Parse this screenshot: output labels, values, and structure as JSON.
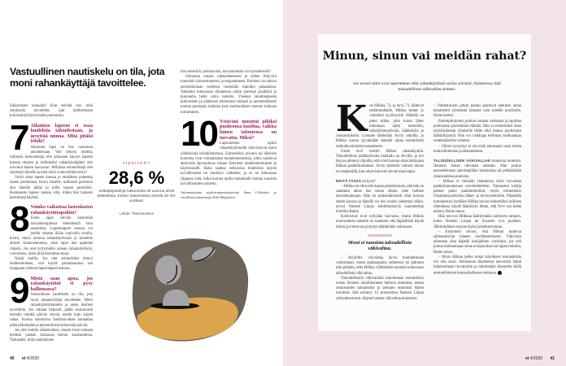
{
  "left_page": {
    "headline": "Vastuullinen nautiskelu on tila, jota moni rahankäyttäjä tavoittelee.",
    "intro": "liikkumisen kannalta? Kun selvität itse, mitä ostoksella tavoittelet, opit hallitsemaan kulutuskäyttäytymistäsi paremmin.",
    "q7": {
      "number": "7",
      "question": "Aikuinen lapseni ei osaa huolehtia taloudestaan, ja ärsyttää minua. Mitä pitäisi tehdä?",
      "paragraphs": [
        "Aikuinen lapsi on itse vastuussa taloudestaan. Voit tietysti miettiä, millaisia keskusteluja olet aikanaan käynyt lapsesi kanssa rahasta ja millaiseksi rahankäyttäjäksi olet toivonut hänen kasvavan. Millaisia esimerkkejä olet näyttänyt hänelle ja mitä olisit voinut tehdä toisin?",
        "Voisit ottaa lapsen kanssa jo etukäteen puheeksi hänen perintönsä. Kerro hänelle, millaisen perinnön aiot hänelle jättää ja mille lapsen perintöön. Keskustele lapsesi kanssa siitä, miten hän haluaisi perintönsä käyttää."
      ]
    },
    "q8": {
      "number": "8",
      "question": "Voinko vaikuttaa lastenlasten rahankäyttötapoihin?",
      "paragraphs": [
        "Usein lapsi selviää enemmän isovanhempiensa tekemisistä kuin sanomista. Lapsenlapsen kanssa voi jutella rahasta ikään sopivalla tavalla. Kerro, mistä omassa rahankäytössäsi ja kuuntele aidosti kiinnostuneena, mitä lapsi itse ajattelee rahasta. Jos olet tyytymätön omaan rahankäyttöösi, voit kertoa, mikä siinä harmittaa sinua.",
        "Näytä mallia. Jos olet esimerkiksi tehnyt heräteostoksen, voit käydä palauttamassa sen kauppaan yhdessä lapsenlapsen kanssa."
      ]
    },
    "q9": {
      "number": "9",
      "question": "Mistä saan apua, jos rahankäyttöni ei pysy hallinnassa?",
      "paragraphs": [
        "Vastuullinen nautiskelu on tila, jota moni rahankäyttäjä tavoittelee. Mieti rahankäyttötilanteita ja aseta itsellesi tavoitteita. Jos tuhlaat helposti, päätä seuraavalla kerralla miettiä päivän verran, ennen kuin käytät rahaa. Isoissa ostoksissa harkinta-aikaa kannattaa pitää pidempään ja pienemmissä seitsemän päivää.",
        "Jos olet todella säästäväinen, haasta itsesi tamaan itsellesi jotakin mukavaa kerran kuukaudessa. Tarkastele, mitä uudenlainen"
      ]
    },
    "fact": {
      "label": "TIESITKÖ?",
      "value": "28,6 %",
      "text": "velkajärjestelyä hakeneista oli vuonna 2019 eläkeläisiä. Eniten hakemuksia tekivät 45–54-vuotiaat.",
      "source": "Lähde: Tilastokeskus"
    },
    "col3": {
      "paragraphs": [
        "tiin tunteisiin: pelottavalta, turvattomalta vai myönteiseltä?",
        "Suhtaudu omaan rahasuhteeseesi ja siihen liittyviin tunteisiin kiinnostuneesti ja empaattisesti. Ihminen on taitava perustelemaan itselleen vanhoihin tapoihin palaamista. Vaikealta tuntuvassa tilanteessa onkin parempi pysähtyä ja kuunnella hetki omia tunteita. Yleensä rahatilanteesta puhuminen ja päätösten tekeminen hitaasti ja perusteellisesti tuottaa parempia tuloksia kuin ensimmäisen tunteen mukaan toimiminen."
      ],
      "q10": {
        "number": "10",
        "question": "Ystäväni muuttui pihiksi puolisonsa kuoltua, vaikka hänen taloutensa on turvattu. Miksi?",
        "paragraph": "Lapsuudessa opitut rahankäyttömallit aktivoituvat usein yllättävissä kriisitilanteissa. Esimerkiksi avioero tai läheisen kuolema ovat voimakkaita tunnekokemuksia, jotka saattavat aktivoida lapsuudessa rahaan liittyneet tunnekokemukset ja käytösmallit. Raha saattaa sellaisissa tilanteissa tarjota turvallisuutta tai merkitys vaihtelee, ja se on kokonaan riippuen siitä, mikä kotona opittu tunnemalli tuottaa suurinta turvallisuuden tunnetta."
      },
      "credit": "Asiantuntijoina psykoterapeuttiopettaja Anna Collander ja varallisuusvalmentaja Terhi Majasalmi."
    },
    "page_number": "40",
    "magazine": "et",
    "issue": "4/2020"
  },
  "right_page": {
    "title": "Minun, sinun vai meidän rahat?",
    "subtitle": "Jos toisen tulot ovat suuremmat eikä rahankäytöstä sovita selvästi, tilanteessa itää taloudellisen väkivallan siemen.",
    "drop_cap": "K",
    "colA": [
      "un Hilkka, 72, ja Arvi, 71, lähtevät etelänmatkalle, Hilkka tuntee jo valmiiksi syyllisyyttä. Hänellä on pieni eläke, joka kuluu lähes kokonaan arjen menoihin, lainanlyhennyksiin, lääkkeisiin ja ruokaostoksiin. Lomalle lähdetään Arvin rahoilla, ja Hilkka joutuu pyytämään häneltä rahaa esimerkiksi matkalla tuliaisten ostamiseen.",
      "Usein Arvi moittii Hilkan rahankäyttöä. Taloudellinen päätäntävalta matkalla on Arvilla, ja nyt hän on alkanut vihjailla, että voisi kotona ottaa haltuunsa Hilkan pankkitunnukset. Arvin mielestä vaimon talous on retuperällä, kun rahat tuntuvat olevan aina loppu."
    ],
    "colA_sub_lead": "MISTÄ TÄSSÄ",
    "colA_sub_rest": " on kyse?",
    "colA_b": [
      "– Hilkka on ollut niin kauan pienituloinen, että hän on saattanut alkaa itse uskoa siihen, ettei hallitse taloudenpitoaan. Hän on todennäköisesti ollut kotona lasten kanssa ja hänellä on sen vuoksi pienempi eläke, arvioi Naisten Linjan kehittämistyön suunnittelija Katriina Raine.",
      "Kotirouvat ovat nykyään harvassa, mutta Hilkan nuoruudessa naiselle on saattanut olla häpeällistä käydä töissä, jos mies on pystynyt elättämään vaimoaan.",
      "– Avioliitto velvoittaa Arvia huolehtimaan vaimostaan, mutta epätasapaino suhteessa on jatkunut niin pitkään, ettei Hilkka välttämättä tunnista kokevansa taloudellista väkivaltaa.",
      "Taloudellisella väkivallalla tarkoitetaan esimerkiksi toisen ihmisen rahaliikenteen haltuun ottamista, toisen omaisuuden tuhoamista ja lainojen ottamista hänen nimiinsä. Sitä esiintyy 12 prosentissa Naisten Linjan yhteydenotoista. Järjestö auttaa väkivaltaa kokeneita."
    ],
    "colB": [
      "– Valitettavasti jotkin pankit saattavat edelleen antaa lainatiedot yhteisestä lainasta vain toiselle puolisolle, Raine kertoo.",
      "Parempituloinen puoliso saattaa vaikuttaa ja rajoittaa puolisonsa päivittäistä elämää. Hän ei esimerkiksi anna käyttöoikeutta yhteiselle tilille eikä maksa puolisonsa lääkärikäyntiä. Hän voi vaikkapa kellottaa suihkuaikaa vedensäästöön vedoten.",
      "– Silloin kysymys ei ole enää talousasia vaan toisen kontrolloinnista ja alistamisesta."
    ],
    "colB_sub_lead": "TALOUDELLISEN VÄKIVALLAN",
    "colB_sub_rest": " tunnistaa tunteista. Ihminen kokee olevansa alistettu. Hän joutuu perustelemaan pienimpiäkin hankintoja tai pelkäämään omaisuutensa puolesta.",
    "colB_b": [
      "– Hilkan ei missään tilanteessa tulisi luovuttaa pankkitunnuksiaan aviomiehelleen. Tunnusten haltija pääsee paitsi pankkitietoihin, myös esimerkiksi Omakanta-palvelun lääke- ja terveystietoihin. Pitämällä tunnuksensa itsellään Hilkka turvaa esimerkiksi laillisen oikeutensa käydä lääkärissä ilman, että Arvi saa tietää asiasta, Raine sanoo.",
      "Hän neuvoo Hilkkaa kääntymään auttavien tahojen, kuten Naisten Linjan tai Suvanto ry:n puoleen. Jälkimmäinen tarjoaa myös juristineuvontaa.",
      "– Erityisesti toivon, että Hilkan tuntevat suhtautuisivat häneen myötätuntoisesti. Väkivalta aiheuttaa aina häpeää kokijalleen varsinkin, jos sitä joutuu kohtaamaan oman aviopuolison tai lapsen taholta, Raine sanoo.",
      "– Myös Hilkan pelko oman käytöksen seurauksista voi olla suuri. Sellaisessa tilanteessa neuvoisin häntä hakeutumaan turvakotiin ja miettimään tilannetta siellä ammattilaisten kanssa/kalkessa rauhassa."
    ],
    "pull_quote": "Moni ei tunnista taloudellista väkivaltaa.",
    "page_number": "41",
    "magazine": "et",
    "issue": "4/2020"
  },
  "colors": {
    "accent": "#a0285a",
    "page_bg": "#f2e4ea",
    "illustration_dark": "#6b6357",
    "illustration_gold": "#dca54d",
    "coin": "#a6a6aa"
  },
  "icons": {
    "end_mark": "et-logo-icon",
    "illustration": "coins-falling-into-purse"
  }
}
